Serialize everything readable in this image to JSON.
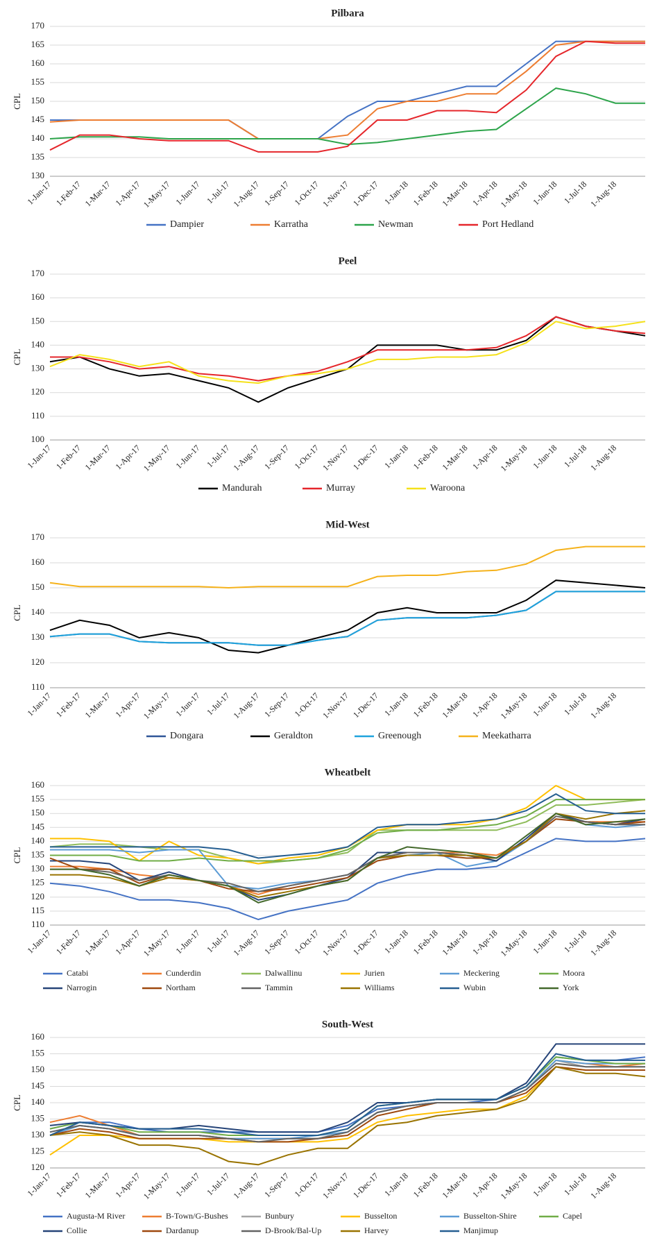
{
  "chart_data": [
    {
      "type": "line",
      "title": "Pilbara",
      "y_label": "CPL",
      "grid": true,
      "categories": [
        "1-Jan-17",
        "1-Feb-17",
        "1-Mar-17",
        "1-Apr-17",
        "1-May-17",
        "1-Jun-17",
        "1-Jul-17",
        "1-Aug-17",
        "1-Sep-17",
        "1-Oct-17",
        "1-Nov-17",
        "1-Dec-17",
        "1-Jan-18",
        "1-Feb-18",
        "1-Mar-18",
        "1-Apr-18",
        "1-May-18",
        "1-Jun-18",
        "1-Jul-18",
        "1-Aug-18",
        null
      ],
      "ylim": [
        130,
        170
      ],
      "yticks": [
        130,
        135,
        140,
        145,
        150,
        155,
        160,
        165,
        170
      ],
      "series": [
        {
          "name": "Dampier",
          "color": "#4472c4",
          "values": [
            145,
            145,
            145,
            145,
            145,
            145,
            145,
            140,
            140,
            140,
            146,
            150,
            150,
            152,
            154,
            154,
            160,
            166,
            166,
            166,
            166
          ]
        },
        {
          "name": "Karratha",
          "color": "#ed7d31",
          "values": [
            144.5,
            145,
            145,
            145,
            145,
            145,
            145,
            140,
            140,
            140,
            141,
            148,
            150,
            150,
            152,
            152,
            158,
            165,
            166,
            166,
            166
          ]
        },
        {
          "name": "Newman",
          "color": "#2ca44a",
          "values": [
            140,
            140.5,
            140.5,
            140.5,
            140,
            140,
            140,
            140,
            140,
            140,
            138.5,
            139,
            140,
            141,
            142,
            142.5,
            148,
            153.5,
            152,
            149.5,
            149.5
          ]
        },
        {
          "name": "Port Hedland",
          "color": "#e5262b",
          "values": [
            137,
            141,
            141,
            140,
            139.5,
            139.5,
            139.5,
            136.5,
            136.5,
            136.5,
            138,
            145,
            145,
            147.5,
            147.5,
            147,
            153,
            162,
            166,
            165.5,
            165.5
          ]
        }
      ]
    },
    {
      "type": "line",
      "title": "Peel",
      "y_label": "CPL",
      "grid": true,
      "categories": [
        "1-Jan-17",
        "1-Feb-17",
        "1-Mar-17",
        "1-Apr-17",
        "1-May-17",
        "1-Jun-17",
        "1-Jul-17",
        "1-Aug-17",
        "1-Sep-17",
        "1-Oct-17",
        "1-Nov-17",
        "1-Dec-17",
        "1-Jan-18",
        "1-Feb-18",
        "1-Mar-18",
        "1-Apr-18",
        "1-May-18",
        "1-Jun-18",
        "1-Jul-18",
        "1-Aug-18",
        null
      ],
      "ylim": [
        100,
        170
      ],
      "yticks": [
        100,
        110,
        120,
        130,
        140,
        150,
        160,
        170
      ],
      "series": [
        {
          "name": "Mandurah",
          "color": "#000000",
          "values": [
            133,
            135,
            130,
            127,
            128,
            125,
            122,
            116,
            122,
            126,
            130,
            140,
            140,
            140,
            138,
            138,
            142,
            152,
            148,
            146,
            144
          ]
        },
        {
          "name": "Murray",
          "color": "#e5262b",
          "values": [
            135,
            135,
            133,
            130,
            131,
            128,
            127,
            125,
            127,
            129,
            133,
            138,
            138,
            138,
            138,
            139,
            144,
            152,
            148,
            146,
            145
          ]
        },
        {
          "name": "Waroona",
          "color": "#f5e11a",
          "values": [
            131,
            136,
            134,
            131,
            133,
            127,
            125,
            124,
            127,
            128,
            130,
            134,
            134,
            135,
            135,
            136,
            141,
            150,
            147,
            148,
            150
          ]
        }
      ]
    },
    {
      "type": "line",
      "title": "Mid-West",
      "y_label": "CPL",
      "grid": true,
      "categories": [
        "1-Jan-17",
        "1-Feb-17",
        "1-Mar-17",
        "1-Apr-17",
        "1-May-17",
        "1-Jun-17",
        "1-Jul-17",
        "1-Aug-17",
        "1-Sep-17",
        "1-Oct-17",
        "1-Nov-17",
        "1-Dec-17",
        "1-Jan-18",
        "1-Feb-18",
        "1-Mar-18",
        "1-Apr-18",
        "1-May-18",
        "1-Jun-18",
        "1-Jul-18",
        "1-Aug-18",
        null
      ],
      "ylim": [
        110,
        170
      ],
      "yticks": [
        110,
        120,
        130,
        140,
        150,
        160,
        170
      ],
      "series": [
        {
          "name": "Dongara",
          "color": "#2f5597",
          "values": [
            130.5,
            131.5,
            131.5,
            128.5,
            128,
            128,
            128,
            127,
            127,
            129,
            130.5,
            137,
            138,
            138,
            138,
            139,
            141,
            148.5,
            148.5,
            148.5,
            148.5
          ]
        },
        {
          "name": "Geraldton",
          "color": "#000000",
          "values": [
            133,
            137,
            135,
            130,
            132,
            130,
            125,
            124,
            127,
            130,
            133,
            140,
            142,
            140,
            140,
            140,
            145,
            153,
            152,
            151,
            150
          ]
        },
        {
          "name": "Greenough",
          "color": "#1fa3dc",
          "values": [
            130.5,
            131.5,
            131.5,
            128.5,
            128,
            128,
            128,
            127,
            127,
            129,
            130.5,
            137,
            138,
            138,
            138,
            139,
            141,
            148.5,
            148.5,
            148.5,
            148.5
          ]
        },
        {
          "name": "Meekatharra",
          "color": "#f5b21b",
          "values": [
            152,
            150.5,
            150.5,
            150.5,
            150.5,
            150.5,
            150,
            150.5,
            150.5,
            150.5,
            150.5,
            154.5,
            155,
            155,
            156.5,
            157,
            159.5,
            165,
            166.5,
            166.5,
            166.5
          ]
        }
      ]
    },
    {
      "type": "line",
      "title": "Wheatbelt",
      "y_label": "CPL",
      "grid": true,
      "categories": [
        "1-Jan-17",
        "1-Feb-17",
        "1-Mar-17",
        "1-Apr-17",
        "1-May-17",
        "1-Jun-17",
        "1-Jul-17",
        "1-Aug-17",
        "1-Sep-17",
        "1-Oct-17",
        "1-Nov-17",
        "1-Dec-17",
        "1-Jan-18",
        "1-Feb-18",
        "1-Mar-18",
        "1-Apr-18",
        "1-May-18",
        "1-Jun-18",
        "1-Jul-18",
        "1-Aug-18",
        null
      ],
      "ylim": [
        110,
        160
      ],
      "yticks": [
        110,
        115,
        120,
        125,
        130,
        135,
        140,
        145,
        150,
        155,
        160
      ],
      "series": [
        {
          "name": "Catabi",
          "color": "#4472c4",
          "values": [
            125,
            124,
            122,
            119,
            119,
            118,
            116,
            112,
            115,
            117,
            119,
            125,
            128,
            130,
            130,
            131,
            136,
            141,
            140,
            140,
            141
          ]
        },
        {
          "name": "Cunderdin",
          "color": "#ed7d31",
          "values": [
            131,
            131,
            130,
            128,
            127,
            126,
            124,
            121,
            124,
            126,
            128,
            134,
            136,
            136,
            136,
            135,
            140,
            150,
            147,
            147,
            147
          ]
        },
        {
          "name": "Dalwallinu",
          "color": "#8fbc5a",
          "values": [
            138,
            139,
            139,
            138,
            137,
            137,
            134,
            132,
            133,
            134,
            136,
            144,
            144,
            144,
            144,
            144,
            147,
            153,
            153,
            154,
            155
          ]
        },
        {
          "name": "Jurien",
          "color": "#ffc000",
          "values": [
            141,
            141,
            140,
            133,
            140,
            135,
            134,
            132,
            134,
            135,
            138,
            144,
            146,
            146,
            146,
            148,
            152,
            160,
            155,
            155,
            155
          ]
        },
        {
          "name": "Meckering",
          "color": "#5b9bd5",
          "values": [
            137,
            137,
            137,
            136,
            137,
            137,
            124,
            123,
            125,
            126,
            128,
            134,
            135,
            136,
            131,
            133,
            140,
            150,
            146,
            145,
            146
          ]
        },
        {
          "name": "Moora",
          "color": "#70ad47",
          "values": [
            135,
            135,
            135,
            133,
            133,
            134,
            133,
            133,
            133,
            134,
            137,
            143,
            144,
            144,
            145,
            146,
            149,
            155,
            155,
            155,
            155
          ]
        },
        {
          "name": "Narrogin",
          "color": "#264478",
          "values": [
            133,
            133,
            132,
            126,
            129,
            126,
            124,
            119,
            121,
            124,
            127,
            136,
            136,
            136,
            135,
            133,
            141,
            150,
            147,
            146,
            148
          ]
        },
        {
          "name": "Northam",
          "color": "#9e480e",
          "values": [
            134,
            130,
            130,
            125,
            128,
            126,
            123,
            122,
            123,
            125,
            127,
            133,
            135,
            135,
            134,
            134,
            140,
            148,
            147,
            146,
            147
          ]
        },
        {
          "name": "Tammin",
          "color": "#636363",
          "values": [
            130,
            130,
            129,
            126,
            128,
            126,
            125,
            122,
            124,
            126,
            128,
            134,
            136,
            136,
            135,
            134,
            140,
            149,
            147,
            146,
            146
          ]
        },
        {
          "name": "Williams",
          "color": "#997300",
          "values": [
            128,
            128,
            127,
            124,
            127,
            126,
            124,
            120,
            122,
            124,
            126,
            134,
            135,
            135,
            135,
            134,
            140,
            150,
            148,
            150,
            151
          ]
        },
        {
          "name": "Wubin",
          "color": "#255e91",
          "values": [
            138,
            138,
            138,
            138,
            138,
            138,
            137,
            134,
            135,
            136,
            138,
            145,
            146,
            146,
            147,
            148,
            151,
            157,
            151,
            150,
            150
          ]
        },
        {
          "name": "York",
          "color": "#43682b",
          "values": [
            130,
            130,
            128,
            124,
            128,
            126,
            124,
            118,
            121,
            124,
            126,
            134,
            138,
            137,
            136,
            134,
            142,
            150,
            146,
            147,
            148
          ]
        }
      ]
    },
    {
      "type": "line",
      "title": "South-West",
      "y_label": "CPL",
      "grid": true,
      "categories": [
        "1-Jan-17",
        "1-Feb-17",
        "1-Mar-17",
        "1-Apr-17",
        "1-May-17",
        "1-Jun-17",
        "1-Jul-17",
        "1-Aug-17",
        "1-Sep-17",
        "1-Oct-17",
        "1-Nov-17",
        "1-Dec-17",
        "1-Jan-18",
        "1-Feb-18",
        "1-Mar-18",
        "1-Apr-18",
        "1-May-18",
        "1-Jun-18",
        "1-Jul-18",
        "1-Aug-18",
        null
      ],
      "ylim": [
        120,
        160
      ],
      "yticks": [
        120,
        125,
        130,
        135,
        140,
        145,
        150,
        155,
        160
      ],
      "series": [
        {
          "name": "Augusta-M River",
          "color": "#4472c4",
          "values": [
            132,
            134,
            134,
            132,
            131,
            131,
            131,
            131,
            131,
            131,
            133,
            138,
            139,
            140,
            140,
            141,
            145,
            154,
            153,
            153,
            154
          ]
        },
        {
          "name": "B-Town/G-Bushes",
          "color": "#ed7d31",
          "values": [
            134,
            136,
            133,
            130,
            130,
            130,
            129,
            129,
            129,
            129,
            131,
            137,
            139,
            140,
            140,
            140,
            144,
            153,
            152,
            151,
            152
          ]
        },
        {
          "name": "Bunbury",
          "color": "#a5a5a5",
          "values": [
            131,
            133,
            132,
            130,
            130,
            130,
            129,
            129,
            129,
            129,
            131,
            137,
            139,
            140,
            140,
            140,
            144,
            153,
            151,
            151,
            151
          ]
        },
        {
          "name": "Busselton",
          "color": "#ffc000",
          "values": [
            124,
            130,
            130,
            129,
            129,
            129,
            128,
            128,
            128,
            128,
            129,
            134,
            136,
            137,
            138,
            138,
            142,
            151,
            150,
            150,
            150
          ]
        },
        {
          "name": "Busselton-Shire",
          "color": "#5b9bd5",
          "values": [
            130,
            133,
            132,
            130,
            130,
            130,
            129,
            129,
            129,
            130,
            131,
            137,
            139,
            140,
            140,
            140,
            144,
            153,
            152,
            152,
            152
          ]
        },
        {
          "name": "Capel",
          "color": "#70ad47",
          "values": [
            132,
            134,
            133,
            131,
            131,
            131,
            130,
            130,
            130,
            130,
            132,
            139,
            140,
            141,
            141,
            141,
            145,
            154,
            153,
            152,
            152
          ]
        },
        {
          "name": "Collie",
          "color": "#264478",
          "values": [
            133,
            134,
            133,
            132,
            132,
            133,
            132,
            131,
            131,
            131,
            134,
            140,
            140,
            141,
            141,
            141,
            146,
            158,
            158,
            158,
            158
          ]
        },
        {
          "name": "Dardanup",
          "color": "#9e480e",
          "values": [
            130,
            132,
            131,
            129,
            129,
            129,
            129,
            128,
            128,
            129,
            130,
            136,
            138,
            140,
            140,
            140,
            143,
            151,
            150,
            150,
            150
          ]
        },
        {
          "name": "D-Brook/Bal-Up",
          "color": "#636363",
          "values": [
            131,
            133,
            132,
            130,
            130,
            130,
            129,
            128,
            129,
            129,
            131,
            137,
            139,
            140,
            140,
            140,
            144,
            152,
            151,
            151,
            151
          ]
        },
        {
          "name": "Harvey",
          "color": "#997300",
          "values": [
            130,
            131,
            130,
            127,
            127,
            126,
            122,
            121,
            124,
            126,
            126,
            133,
            134,
            136,
            137,
            138,
            141,
            151,
            149,
            149,
            148
          ]
        },
        {
          "name": "Manjimup",
          "color": "#255e91",
          "values": [
            130,
            134,
            133,
            132,
            132,
            132,
            131,
            130,
            130,
            130,
            132,
            139,
            140,
            141,
            141,
            141,
            145,
            155,
            153,
            153,
            153
          ]
        }
      ]
    }
  ]
}
